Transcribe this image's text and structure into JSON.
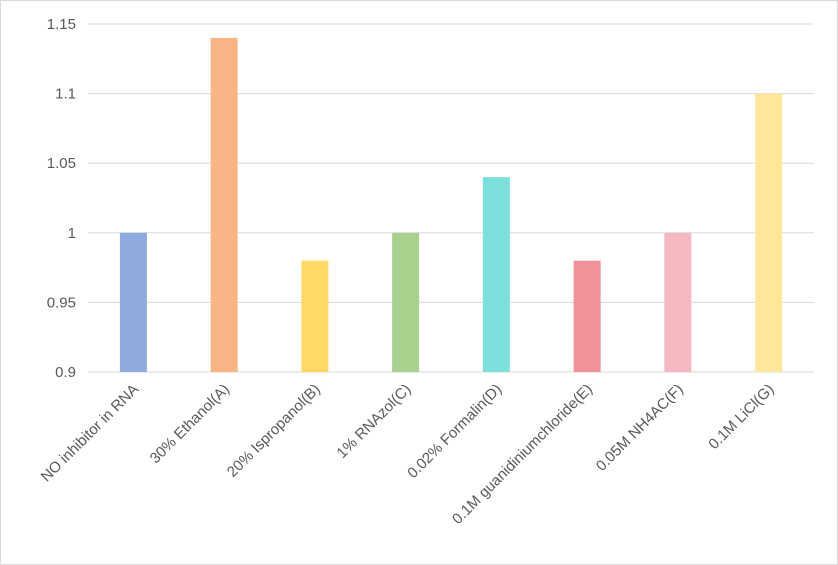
{
  "chart_data": {
    "type": "bar",
    "title": "",
    "xlabel": "",
    "ylabel": "",
    "ylim": [
      0.9,
      1.15
    ],
    "yticks": [
      0.9,
      0.95,
      1,
      1.05,
      1.1,
      1.15
    ],
    "ytick_labels": [
      "0.9",
      "0.95",
      "1",
      "1.05",
      "1.1",
      "1.15"
    ],
    "grid": true,
    "legend": "none",
    "categories": [
      "NO inhibitor in RNA",
      "30% Ethanol(A)",
      "20% Ispropanol(B)",
      "1% RNAzol(C)",
      "0.02% Formalin(D)",
      "0.1M guanidiniumchloride(E)",
      "0.05M NH4AC(F)",
      "0.1M LiCl(G)"
    ],
    "values": [
      1.0,
      1.14,
      0.98,
      1.0,
      1.04,
      0.98,
      1.0,
      1.1
    ],
    "colors": [
      "#8faadc",
      "#f8b485",
      "#ffd966",
      "#a9d18e",
      "#7ddfd9",
      "#f0929a",
      "#f4b8c0",
      "#ffe699"
    ]
  }
}
